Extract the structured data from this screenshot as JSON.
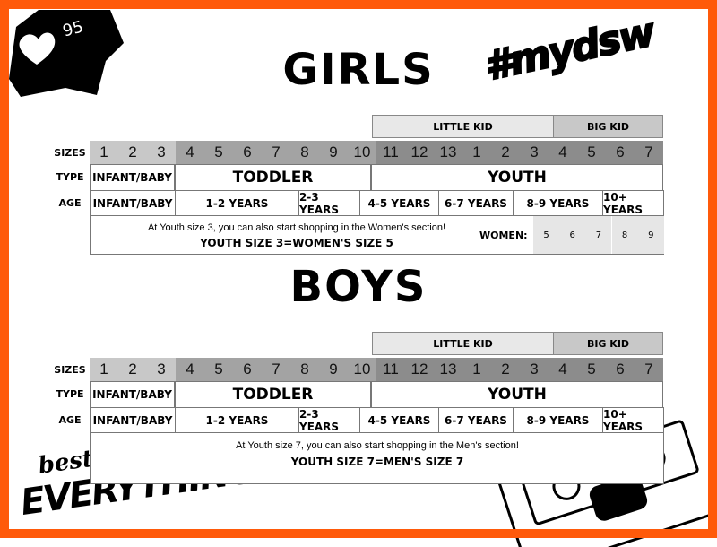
{
  "badge": {
    "icon": "heart-icon",
    "count": "95"
  },
  "hashtag": "#mydsw",
  "logo": {
    "line1": "best of",
    "line2": "EVERYTHING"
  },
  "colors": {
    "border": "#ff5a0a",
    "sizes_infant": "#c8c8c8",
    "sizes_toddler": "#a3a3a3",
    "sizes_youth": "#8c8c8c",
    "little_kid": "#e8e8e8",
    "big_kid": "#c8c8c8"
  },
  "row_labels": {
    "sizes": "SIZES",
    "type": "TYPE",
    "age": "AGE"
  },
  "groups": {
    "little_kid": "LITTLE KID",
    "big_kid": "BIG KID"
  },
  "sizes": [
    "1",
    "2",
    "3",
    "4",
    "5",
    "6",
    "7",
    "8",
    "9",
    "10",
    "11",
    "12",
    "13",
    "1",
    "2",
    "3",
    "4",
    "5",
    "6",
    "7"
  ],
  "types": [
    "INFANT/BABY",
    "TODDLER",
    "YOUTH"
  ],
  "ages": [
    "INFANT/BABY",
    "1-2 YEARS",
    "2-3 YEARS",
    "4-5 YEARS",
    "6-7 YEARS",
    "8-9 YEARS",
    "10+ YEARS"
  ],
  "girls": {
    "title": "GIRLS",
    "note_line1": "At Youth size 3, you can also start shopping in the Women's section!",
    "note_line2": "YOUTH SIZE 3=WOMEN'S SIZE 5",
    "women_label": "WOMEN:",
    "women_sizes": [
      "5",
      "6",
      "7",
      "8",
      "9"
    ]
  },
  "boys": {
    "title": "BOYS",
    "note_line1": "At Youth size 7, you can also start shopping in the Men's section!",
    "note_line2": "YOUTH SIZE 7=MEN'S SIZE 7"
  }
}
